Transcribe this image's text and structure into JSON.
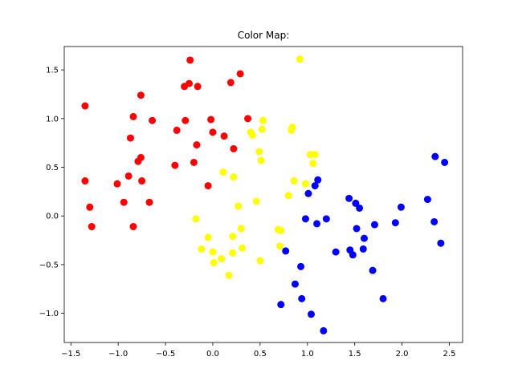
{
  "chart_data": {
    "type": "scatter",
    "title": "Color Map:",
    "xlabel": "",
    "ylabel": "",
    "xlim": [
      -1.57,
      2.64
    ],
    "ylim": [
      -1.3,
      1.74
    ],
    "xticks": [
      -1.5,
      -1.0,
      -0.5,
      0.0,
      0.5,
      1.0,
      1.5,
      2.0,
      2.5
    ],
    "xtick_labels": [
      "−1.5",
      "−1.0",
      "−0.5",
      "0.0",
      "0.5",
      "1.0",
      "1.5",
      "2.0",
      "2.5"
    ],
    "yticks": [
      -1.0,
      -0.5,
      0.0,
      0.5,
      1.0,
      1.5
    ],
    "ytick_labels": [
      "−1.0",
      "−0.5",
      "0.0",
      "0.5",
      "1.0",
      "1.5"
    ],
    "grid": false,
    "series": [
      {
        "color": "#ff0000",
        "points": [
          [
            -1.35,
            1.13
          ],
          [
            -1.35,
            0.36
          ],
          [
            -1.3,
            0.09
          ],
          [
            -1.28,
            -0.11
          ],
          [
            -1.01,
            0.33
          ],
          [
            -0.94,
            0.14
          ],
          [
            -0.89,
            0.41
          ],
          [
            -0.87,
            0.8
          ],
          [
            -0.84,
            1.02
          ],
          [
            -0.84,
            -0.11
          ],
          [
            -0.79,
            0.56
          ],
          [
            -0.76,
            1.24
          ],
          [
            -0.76,
            0.6
          ],
          [
            -0.75,
            0.36
          ],
          [
            -0.67,
            0.14
          ],
          [
            -0.64,
            0.98
          ],
          [
            -0.4,
            0.52
          ],
          [
            -0.38,
            0.88
          ],
          [
            -0.3,
            1.33
          ],
          [
            -0.29,
            0.98
          ],
          [
            -0.25,
            1.36
          ],
          [
            -0.24,
            1.6
          ],
          [
            -0.2,
            0.55
          ],
          [
            -0.17,
            0.73
          ],
          [
            -0.16,
            1.33
          ],
          [
            -0.05,
            0.31
          ],
          [
            -0.02,
            0.99
          ],
          [
            0.0,
            0.86
          ],
          [
            0.12,
            0.82
          ],
          [
            0.19,
            1.37
          ],
          [
            0.22,
            0.69
          ],
          [
            0.29,
            1.46
          ],
          [
            0.37,
            1.0
          ]
        ]
      },
      {
        "color": "#ffff00",
        "points": [
          [
            -0.18,
            -0.03
          ],
          [
            -0.12,
            -0.34
          ],
          [
            -0.05,
            -0.22
          ],
          [
            0.0,
            -0.37
          ],
          [
            0.01,
            -0.48
          ],
          [
            0.09,
            -0.44
          ],
          [
            0.11,
            0.45
          ],
          [
            0.17,
            -0.61
          ],
          [
            0.21,
            -0.21
          ],
          [
            0.21,
            -0.38
          ],
          [
            0.22,
            0.4
          ],
          [
            0.27,
            0.1
          ],
          [
            0.3,
            -0.13
          ],
          [
            0.31,
            -0.33
          ],
          [
            0.4,
            0.86
          ],
          [
            0.42,
            0.83
          ],
          [
            0.46,
            0.15
          ],
          [
            0.49,
            0.66
          ],
          [
            0.5,
            -0.46
          ],
          [
            0.51,
            0.57
          ],
          [
            0.52,
            0.89
          ],
          [
            0.53,
            0.98
          ],
          [
            0.69,
            -0.14
          ],
          [
            0.71,
            -0.31
          ],
          [
            0.72,
            -0.15
          ],
          [
            0.8,
            0.21
          ],
          [
            0.83,
            0.88
          ],
          [
            0.84,
            0.91
          ],
          [
            0.86,
            0.36
          ],
          [
            0.92,
            1.61
          ],
          [
            0.98,
            0.33
          ],
          [
            1.03,
            0.63
          ],
          [
            1.06,
            0.54
          ],
          [
            1.08,
            0.63
          ]
        ]
      },
      {
        "color": "#0000ff",
        "points": [
          [
            0.72,
            -0.91
          ],
          [
            0.77,
            -0.36
          ],
          [
            0.87,
            -0.7
          ],
          [
            0.93,
            -0.52
          ],
          [
            0.94,
            -0.85
          ],
          [
            0.98,
            -0.03
          ],
          [
            1.01,
            0.23
          ],
          [
            1.04,
            -1.01
          ],
          [
            1.08,
            0.31
          ],
          [
            1.1,
            -0.08
          ],
          [
            1.11,
            0.37
          ],
          [
            1.17,
            -1.18
          ],
          [
            1.2,
            -0.03
          ],
          [
            1.3,
            -0.37
          ],
          [
            1.44,
            0.18
          ],
          [
            1.45,
            -0.35
          ],
          [
            1.48,
            -0.4
          ],
          [
            1.51,
            0.13
          ],
          [
            1.52,
            -0.13
          ],
          [
            1.55,
            0.08
          ],
          [
            1.59,
            -0.34
          ],
          [
            1.6,
            -0.23
          ],
          [
            1.69,
            -0.56
          ],
          [
            1.71,
            -0.09
          ],
          [
            1.8,
            -0.85
          ],
          [
            1.93,
            -0.07
          ],
          [
            1.99,
            0.09
          ],
          [
            2.27,
            0.17
          ],
          [
            2.34,
            -0.06
          ],
          [
            2.35,
            0.61
          ],
          [
            2.41,
            -0.28
          ],
          [
            2.45,
            0.55
          ]
        ]
      }
    ]
  }
}
